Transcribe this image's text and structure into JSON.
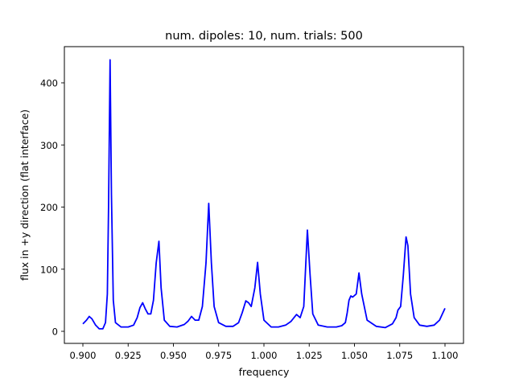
{
  "chart_data": {
    "type": "line",
    "title": "num. dipoles: 10, num. trials: 500",
    "xlabel": "frequency",
    "ylabel": "flux in +y direction (flat interface)",
    "xlim": [
      0.89,
      1.11
    ],
    "ylim": [
      -20,
      458
    ],
    "grid": false,
    "legend": null,
    "xticks": [
      0.9,
      0.925,
      0.95,
      0.975,
      1.0,
      1.025,
      1.05,
      1.075,
      1.1
    ],
    "xtick_labels": [
      "0.900",
      "0.925",
      "0.950",
      "0.975",
      "1.000",
      "1.025",
      "1.050",
      "1.075",
      "1.100"
    ],
    "yticks": [
      0,
      100,
      200,
      300,
      400
    ],
    "ytick_labels": [
      "0",
      "100",
      "200",
      "300",
      "400"
    ],
    "series": [
      {
        "name": "flux",
        "color": "#0000ff",
        "x": [
          0.9,
          0.902,
          0.9035,
          0.905,
          0.907,
          0.909,
          0.911,
          0.9125,
          0.9135,
          0.9142,
          0.915,
          0.9158,
          0.9168,
          0.918,
          0.921,
          0.925,
          0.928,
          0.93,
          0.9315,
          0.933,
          0.9345,
          0.936,
          0.9375,
          0.939,
          0.9405,
          0.942,
          0.9432,
          0.945,
          0.948,
          0.952,
          0.956,
          0.958,
          0.96,
          0.962,
          0.964,
          0.966,
          0.968,
          0.9695,
          0.971,
          0.9725,
          0.975,
          0.979,
          0.983,
          0.986,
          0.988,
          0.99,
          0.9915,
          0.993,
          0.995,
          0.9965,
          0.998,
          1.0,
          1.004,
          1.008,
          1.012,
          1.015,
          1.018,
          1.02,
          1.022,
          1.024,
          1.0255,
          1.027,
          1.03,
          1.035,
          1.04,
          1.043,
          1.045,
          1.046,
          1.047,
          1.048,
          1.049,
          1.051,
          1.0525,
          1.054,
          1.057,
          1.062,
          1.067,
          1.071,
          1.073,
          1.074,
          1.0755,
          1.077,
          1.0785,
          1.0795,
          1.081,
          1.083,
          1.086,
          1.09,
          1.094,
          1.097,
          1.1
        ],
        "y": [
          12,
          18,
          24,
          20,
          10,
          4,
          4,
          14,
          60,
          200,
          437,
          220,
          50,
          14,
          7,
          7,
          10,
          22,
          38,
          46,
          36,
          28,
          28,
          50,
          110,
          145,
          70,
          18,
          8,
          7,
          11,
          16,
          24,
          18,
          18,
          40,
          110,
          206,
          110,
          40,
          14,
          8,
          8,
          14,
          30,
          49,
          46,
          40,
          70,
          111,
          60,
          18,
          7,
          7,
          10,
          16,
          27,
          22,
          40,
          163,
          90,
          28,
          10,
          7,
          7,
          9,
          14,
          30,
          50,
          57,
          55,
          60,
          94,
          60,
          18,
          8,
          6,
          12,
          22,
          34,
          40,
          90,
          152,
          138,
          60,
          22,
          10,
          8,
          10,
          18,
          37
        ]
      }
    ]
  }
}
